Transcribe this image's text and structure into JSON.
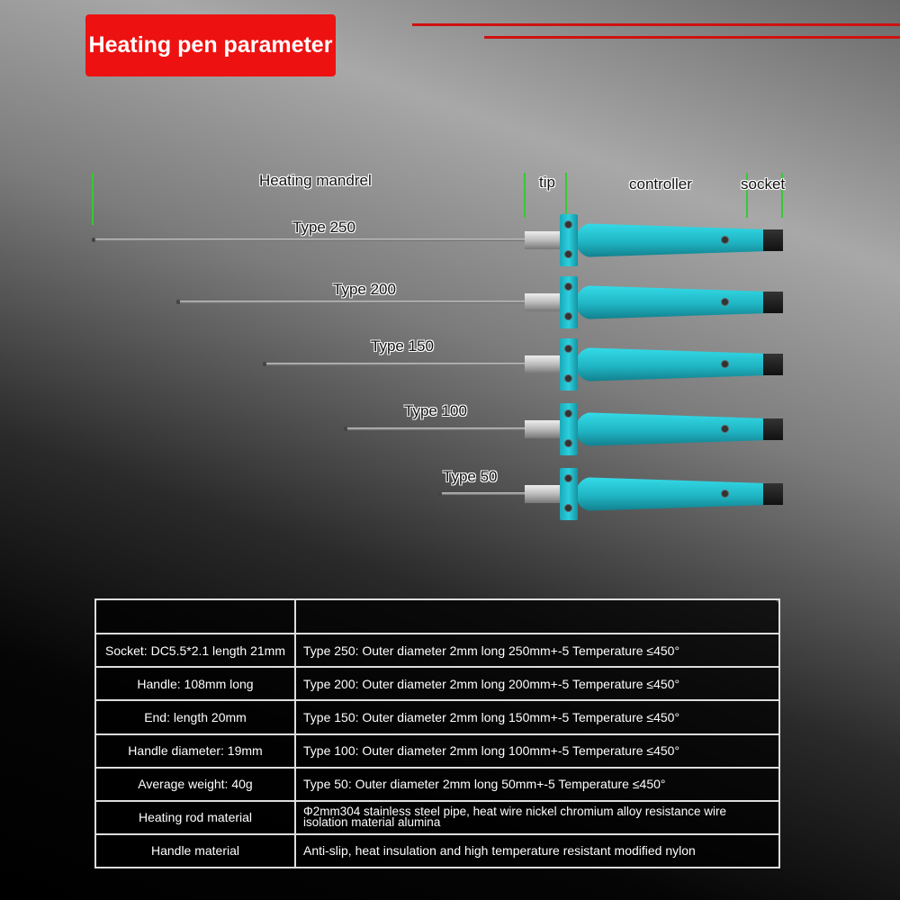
{
  "title": "Heating pen parameter",
  "part_labels": {
    "mandrel": "Heating mandrel",
    "tip": "tip",
    "controller": "controller",
    "socket": "socket"
  },
  "pens": [
    {
      "label": "Type 250"
    },
    {
      "label": "Type 200"
    },
    {
      "label": "Type 150"
    },
    {
      "label": "Type 100"
    },
    {
      "label": "Type 50"
    }
  ],
  "colors": {
    "title_bg": "#ee1111",
    "handle": "#2cc8d6",
    "guide": "#37c837"
  },
  "table": {
    "rows": [
      {
        "left": "Socket: DC5.5*2.1 length 21mm",
        "right": "Type 250: Outer diameter 2mm long 250mm+-5 Temperature ≤450°"
      },
      {
        "left": "Handle: 108mm long",
        "right": "Type 200: Outer diameter 2mm long 200mm+-5 Temperature ≤450°"
      },
      {
        "left": "End: length 20mm",
        "right": "Type 150: Outer diameter 2mm long 150mm+-5 Temperature ≤450°"
      },
      {
        "left": "Handle diameter: 19mm",
        "right": "Type 100: Outer diameter 2mm long 100mm+-5 Temperature ≤450°"
      },
      {
        "left": "Average weight: 40g",
        "right": "Type 50: Outer diameter 2mm long 50mm+-5 Temperature ≤450°"
      },
      {
        "left": "Heating rod material",
        "right": "Φ2mm304 stainless steel pipe, heat wire nickel chromium alloy resistance wire isolation material alumina"
      },
      {
        "left": "Handle material",
        "right": "Anti-slip, heat insulation and high temperature resistant modified nylon"
      }
    ]
  }
}
